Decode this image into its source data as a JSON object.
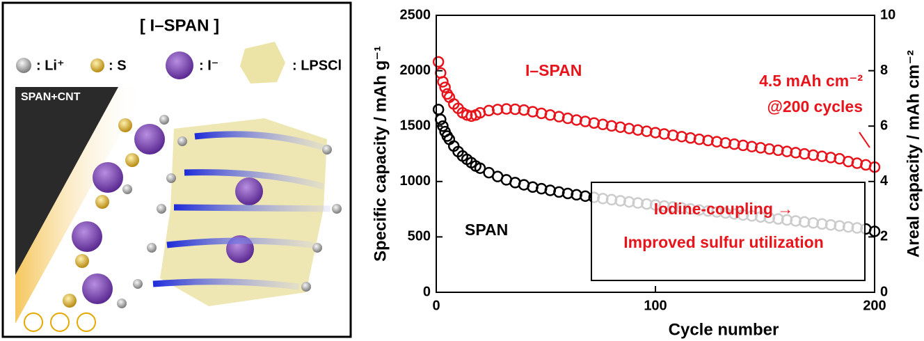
{
  "schematic": {
    "title": "[ I–SPAN ]",
    "legend": [
      ": Li⁺",
      ": S",
      ": I⁻",
      ": LPSCl"
    ],
    "substrate": "SPAN+CNT"
  },
  "chart_data": {
    "type": "scatter",
    "xlabel": "Cycle number",
    "ylabel": "Specific capacity / mAh g⁻¹",
    "y2label": "Areal capacity / mAh cm⁻²",
    "xlim": [
      0,
      200
    ],
    "xticks": [
      0,
      100,
      200
    ],
    "ylim": [
      0,
      2500
    ],
    "yticks": [
      0,
      500,
      1000,
      1500,
      2000,
      2500
    ],
    "y2lim": [
      0,
      10
    ],
    "y2ticks": [
      0,
      2,
      4,
      6,
      8,
      10
    ],
    "x": [
      1,
      2,
      3,
      4,
      5,
      6,
      8,
      10,
      12,
      14,
      16,
      18,
      20,
      24,
      28,
      32,
      36,
      40,
      44,
      48,
      52,
      56,
      60,
      64,
      68,
      72,
      76,
      80,
      84,
      88,
      92,
      96,
      100,
      104,
      108,
      112,
      116,
      120,
      124,
      128,
      132,
      136,
      140,
      144,
      148,
      152,
      156,
      160,
      164,
      168,
      172,
      176,
      180,
      184,
      188,
      192,
      196,
      200
    ],
    "series": [
      {
        "name": "I–SPAN",
        "color": "#e8141b",
        "values": [
          2080,
          1980,
          1900,
          1850,
          1790,
          1760,
          1700,
          1660,
          1620,
          1600,
          1590,
          1600,
          1620,
          1640,
          1650,
          1655,
          1652,
          1645,
          1630,
          1615,
          1600,
          1585,
          1570,
          1555,
          1542,
          1528,
          1515,
          1502,
          1490,
          1478,
          1465,
          1453,
          1441,
          1429,
          1417,
          1405,
          1393,
          1381,
          1370,
          1359,
          1348,
          1337,
          1326,
          1315,
          1304,
          1293,
          1282,
          1271,
          1260,
          1249,
          1238,
          1227,
          1216,
          1205,
          1180,
          1165,
          1150,
          1130
        ]
      },
      {
        "name": "SPAN",
        "color": "#000000",
        "values": [
          1650,
          1560,
          1500,
          1450,
          1410,
          1380,
          1320,
          1270,
          1230,
          1200,
          1170,
          1140,
          1120,
          1080,
          1045,
          1015,
          990,
          970,
          950,
          935,
          920,
          905,
          892,
          880,
          868,
          857,
          846,
          836,
          826,
          816,
          806,
          797,
          788,
          779,
          770,
          761,
          752,
          743,
          734,
          725,
          716,
          707,
          698,
          689,
          680,
          671,
          662,
          653,
          644,
          635,
          626,
          617,
          608,
          599,
          590,
          581,
          572,
          550
        ]
      }
    ],
    "annotations": [
      "4.5 mAh cm⁻²",
      "@200 cycles",
      "Iodine-coupling →",
      "Improved sulfur utilization"
    ]
  }
}
